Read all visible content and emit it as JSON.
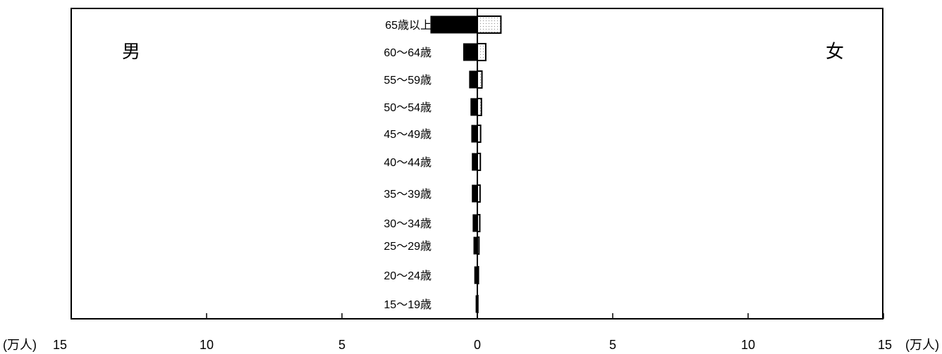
{
  "chart_data": {
    "type": "bar",
    "orientation": "horizontal",
    "layout": "population-pyramid",
    "unit": "(万人)",
    "left_label": "男",
    "right_label": "女",
    "categories": [
      "15～19歳",
      "20～24歳",
      "25～29歳",
      "30～34歳",
      "35～39歳",
      "40～44歳",
      "45～49歳",
      "50～54歳",
      "55～59歳",
      "60～64歳",
      "65歳以上"
    ],
    "series": [
      {
        "name": "男",
        "values": [
          0.05,
          0.1,
          0.13,
          0.16,
          0.19,
          0.19,
          0.21,
          0.24,
          0.29,
          0.51,
          1.72
        ]
      },
      {
        "name": "女",
        "values": [
          0.02,
          0.04,
          0.06,
          0.09,
          0.1,
          0.11,
          0.12,
          0.15,
          0.17,
          0.31,
          0.87
        ]
      }
    ],
    "xlim": [
      -15,
      15
    ],
    "x_ticks": [
      {
        "value": -15,
        "label": "15"
      },
      {
        "value": -10,
        "label": "10"
      },
      {
        "value": -5,
        "label": "5"
      },
      {
        "value": 0,
        "label": "0"
      },
      {
        "value": 5,
        "label": "5"
      },
      {
        "value": 10,
        "label": "10"
      },
      {
        "value": 15,
        "label": "15"
      }
    ],
    "grid": false,
    "colors": {
      "male": "#000000",
      "female_fill": "#ffffff",
      "female_dots": "#888888"
    }
  }
}
